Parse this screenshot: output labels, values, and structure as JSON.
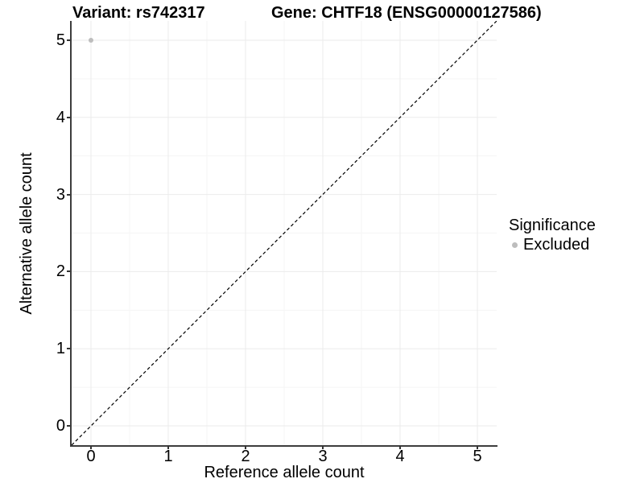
{
  "titles": {
    "variant": "Variant: rs742317",
    "gene": "Gene: CHTF18 (ENSG00000127586)"
  },
  "legend": {
    "title": "Significance",
    "items": [
      {
        "label": "Excluded",
        "color": "#bdbdbd"
      }
    ]
  },
  "chart_data": {
    "type": "scatter",
    "title": "Variant: rs742317 | Gene: CHTF18 (ENSG00000127586)",
    "xlabel": "Reference allele count",
    "ylabel": "Alternative allele count",
    "xlim": [
      -0.25,
      5.25
    ],
    "ylim": [
      -0.25,
      5.25
    ],
    "xticks": [
      0,
      1,
      2,
      3,
      4,
      5
    ],
    "yticks": [
      0,
      1,
      2,
      3,
      4,
      5
    ],
    "minor_ticks": [
      0.5,
      1.5,
      2.5,
      3.5,
      4.5
    ],
    "grid": true,
    "legend_position": "right",
    "series": [
      {
        "name": "Excluded",
        "color": "#bdbdbd",
        "points": [
          {
            "x": 0,
            "y": 5
          }
        ]
      }
    ],
    "reference_line": {
      "kind": "identity y=x",
      "from": [
        -0.25,
        -0.25
      ],
      "to": [
        5.25,
        5.25
      ],
      "style": "dashed",
      "color": "#000000"
    }
  },
  "colors": {
    "background": "#ffffff",
    "grid_major": "#ebebeb",
    "grid_minor": "#f5f5f5",
    "axis_line": "#3d3d3d",
    "tick_mark": "#333333",
    "text": "#000000",
    "point": "#bdbdbd"
  }
}
